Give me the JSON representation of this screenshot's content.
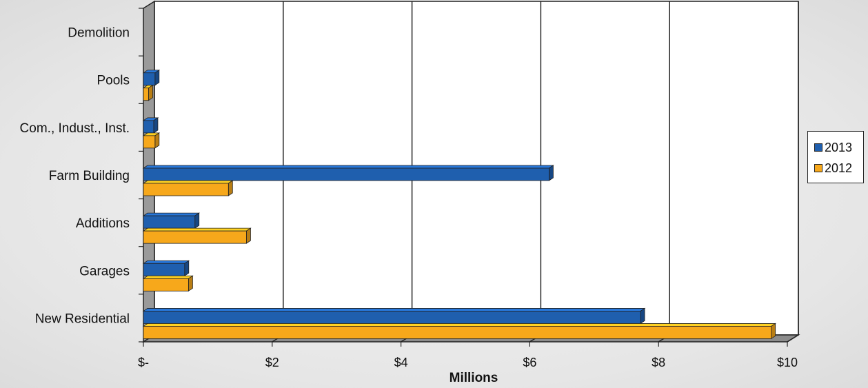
{
  "chart_data": {
    "type": "bar",
    "orientation": "horizontal",
    "style": "3d",
    "categories": [
      "Demolition",
      "Pools",
      "Com., Indust., Inst.",
      "Farm Building",
      "Additions",
      "Garages",
      "New Residential"
    ],
    "series": [
      {
        "name": "2013",
        "color": "#1f5fae",
        "values": [
          0,
          0.18,
          0.16,
          6.3,
          0.8,
          0.64,
          7.72
        ]
      },
      {
        "name": "2012",
        "color": "#f7a81b",
        "values": [
          0,
          0.08,
          0.18,
          1.32,
          1.6,
          0.7,
          9.75
        ]
      }
    ],
    "xlabel": "Millions",
    "ylabel": "",
    "xlim": [
      0,
      10
    ],
    "xticks": [
      0,
      2,
      4,
      6,
      8,
      10
    ],
    "xtick_labels": [
      "$-",
      "$2",
      "$4",
      "$6",
      "$8",
      "$10"
    ],
    "grid": "vertical",
    "legend_position": "right"
  }
}
